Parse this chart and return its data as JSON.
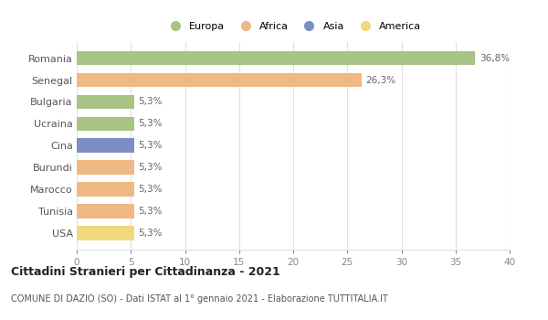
{
  "categories": [
    "Romania",
    "Senegal",
    "Bulgaria",
    "Ucraina",
    "Cina",
    "Burundi",
    "Marocco",
    "Tunisia",
    "USA"
  ],
  "values": [
    36.8,
    26.3,
    5.3,
    5.3,
    5.3,
    5.3,
    5.3,
    5.3,
    5.3
  ],
  "labels": [
    "36,8%",
    "26,3%",
    "5,3%",
    "5,3%",
    "5,3%",
    "5,3%",
    "5,3%",
    "5,3%",
    "5,3%"
  ],
  "colors": [
    "#a8c484",
    "#f0b884",
    "#a8c484",
    "#a8c484",
    "#7b8fc4",
    "#f0b884",
    "#f0b884",
    "#f0b884",
    "#f0d87c"
  ],
  "legend": [
    {
      "label": "Europa",
      "color": "#a8c484"
    },
    {
      "label": "Africa",
      "color": "#f0b884"
    },
    {
      "label": "Asia",
      "color": "#7b8fc4"
    },
    {
      "label": "America",
      "color": "#f0d87c"
    }
  ],
  "xlim": [
    0,
    40
  ],
  "xticks": [
    0,
    5,
    10,
    15,
    20,
    25,
    30,
    35,
    40
  ],
  "title": "Cittadini Stranieri per Cittadinanza - 2021",
  "subtitle": "COMUNE DI DAZIO (SO) - Dati ISTAT al 1° gennaio 2021 - Elaborazione TUTTITALIA.IT",
  "background_color": "#ffffff",
  "plot_bg_color": "#ffffff",
  "grid_color": "#e0e0e0",
  "label_color": "#888888",
  "bar_label_color": "#666666"
}
